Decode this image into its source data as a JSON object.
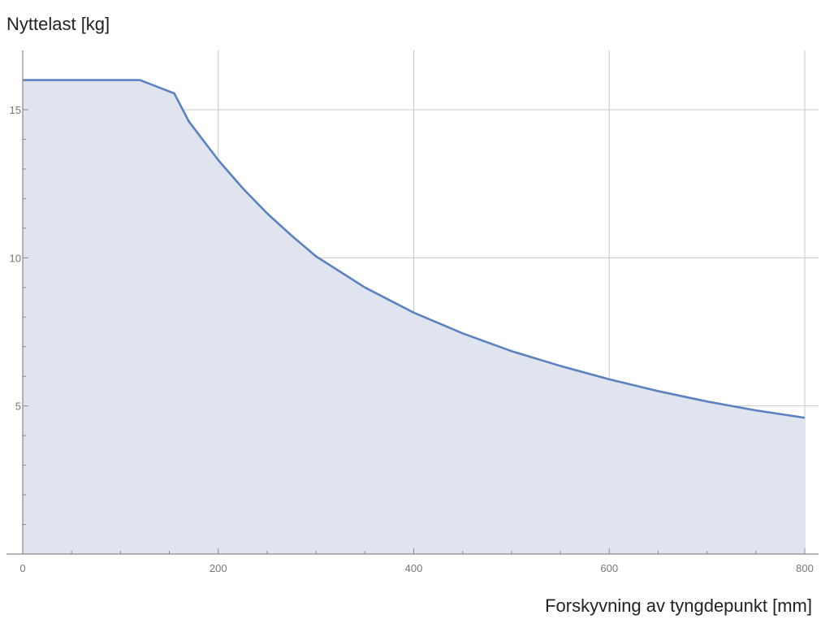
{
  "chart_data": {
    "type": "area",
    "title": "",
    "xlabel": "Forskyvning av tyngdepunkt [mm]",
    "ylabel": "Nyttelast [kg]",
    "xlim": [
      0,
      820
    ],
    "ylim": [
      0,
      17
    ],
    "x_ticks": [
      0,
      200,
      400,
      600,
      800
    ],
    "x_minor_ticks": [
      50,
      100,
      150,
      250,
      300,
      350,
      450,
      500,
      550,
      650,
      700,
      750
    ],
    "y_ticks": [
      5,
      10,
      15
    ],
    "y_minor_ticks": [
      1,
      2,
      3,
      4,
      6,
      7,
      8,
      9,
      11,
      12,
      13,
      14,
      16
    ],
    "grid": true,
    "colors": {
      "line": "#5b82c0",
      "fill": "#dfe4ef"
    },
    "series": [
      {
        "x": [
          0,
          120,
          155,
          170,
          200,
          225,
          250,
          275,
          300,
          350,
          400,
          450,
          500,
          550,
          600,
          650,
          700,
          750,
          800
        ],
        "values": [
          16,
          16,
          15.55,
          14.6,
          13.3,
          12.35,
          11.5,
          10.75,
          10.05,
          9.0,
          8.15,
          7.45,
          6.85,
          6.35,
          5.9,
          5.5,
          5.15,
          4.85,
          4.6
        ]
      }
    ]
  }
}
